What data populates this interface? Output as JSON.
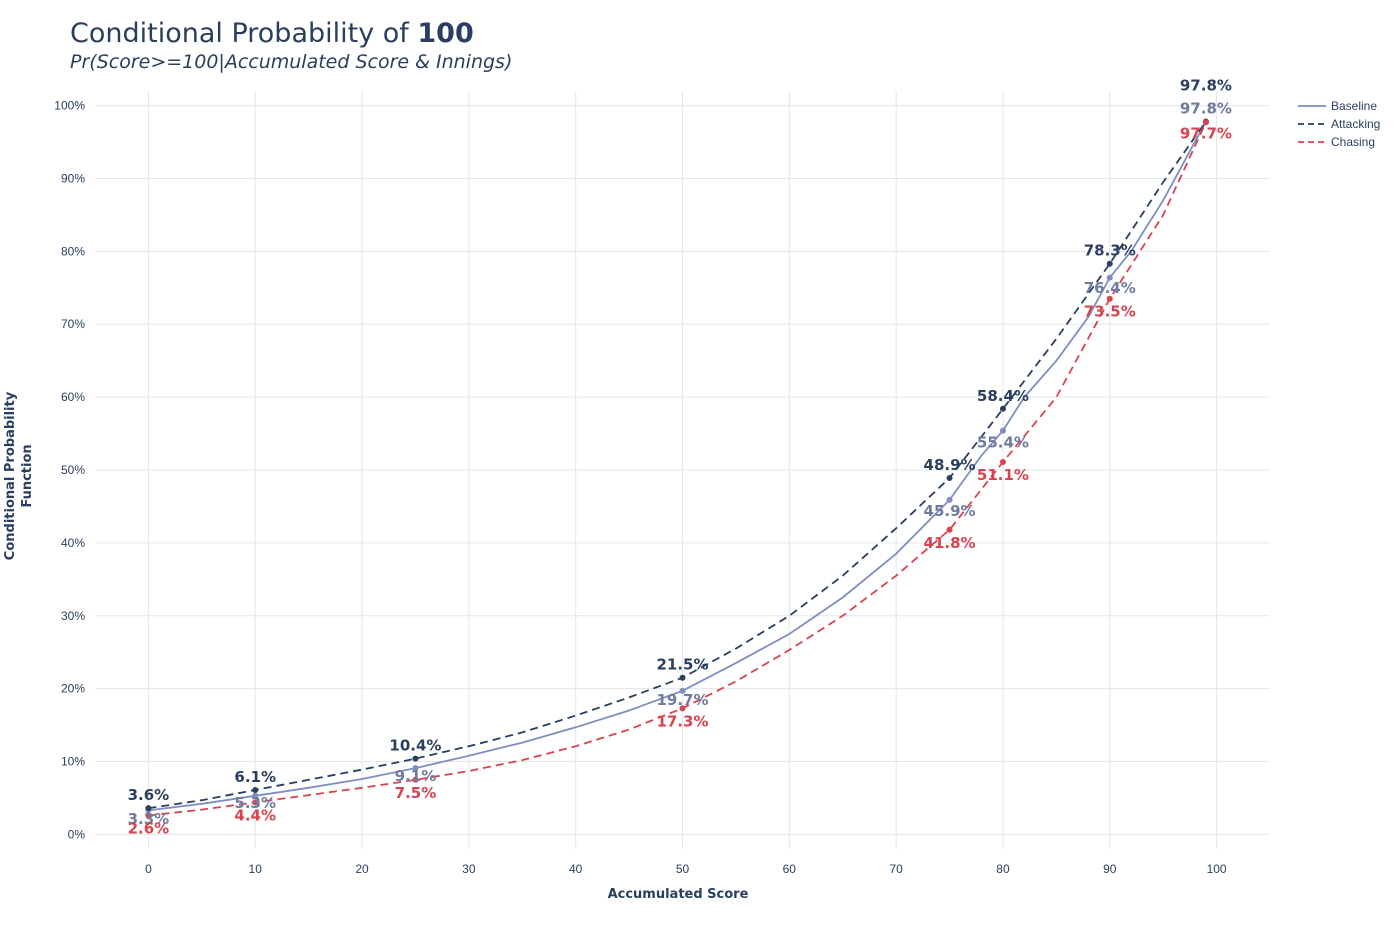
{
  "chart_data": {
    "type": "line",
    "title_prefix": "Conditional Probability of ",
    "title_bold": "100",
    "subtitle": "Pr(Score>=100|Accumulated Score & Innings)",
    "xlabel": "Accumulated Score",
    "ylabel_line1": "Conditional Probability",
    "ylabel_line2": "Function",
    "xlim": [
      -5,
      105
    ],
    "ylim": [
      -0.02,
      1.02
    ],
    "xticks": [
      0,
      10,
      20,
      30,
      40,
      50,
      60,
      70,
      80,
      90,
      100
    ],
    "xtick_labels": [
      "0",
      "10",
      "20",
      "30",
      "40",
      "50",
      "60",
      "70",
      "80",
      "90",
      "100"
    ],
    "yticks": [
      0,
      0.1,
      0.2,
      0.3,
      0.4,
      0.5,
      0.6,
      0.7,
      0.8,
      0.9,
      1.0
    ],
    "ytick_labels": [
      "0%",
      "10%",
      "20%",
      "30%",
      "40%",
      "50%",
      "60%",
      "70%",
      "80%",
      "90%",
      "100%"
    ],
    "grid": true,
    "legend_position": "top-right",
    "series": [
      {
        "name": "Baseline",
        "color": "#7f8ec2",
        "dash": "solid",
        "x": [
          0,
          5,
          10,
          15,
          20,
          25,
          30,
          35,
          40,
          45,
          50,
          55,
          60,
          65,
          70,
          75,
          78,
          80,
          82,
          85,
          88,
          90,
          92,
          95,
          99
        ],
        "y": [
          0.033,
          0.042,
          0.053,
          0.064,
          0.076,
          0.091,
          0.108,
          0.126,
          0.147,
          0.17,
          0.197,
          0.235,
          0.275,
          0.325,
          0.385,
          0.459,
          0.52,
          0.554,
          0.6,
          0.65,
          0.71,
          0.764,
          0.8,
          0.87,
          0.978
        ],
        "markers": [
          {
            "x": 0,
            "y": 0.033,
            "label": "3.3%"
          },
          {
            "x": 10,
            "y": 0.053,
            "label": "5.3%"
          },
          {
            "x": 25,
            "y": 0.091,
            "label": "9.1%"
          },
          {
            "x": 50,
            "y": 0.197,
            "label": "19.7%"
          },
          {
            "x": 75,
            "y": 0.459,
            "label": "45.9%"
          },
          {
            "x": 80,
            "y": 0.554,
            "label": "55.4%"
          },
          {
            "x": 90,
            "y": 0.764,
            "label": "76.4%"
          },
          {
            "x": 99,
            "y": 0.978,
            "label": "97.8%"
          }
        ]
      },
      {
        "name": "Attacking",
        "color": "#2a3f5f",
        "dash": "dash",
        "x": [
          0,
          5,
          10,
          15,
          20,
          25,
          30,
          35,
          40,
          45,
          50,
          55,
          60,
          65,
          70,
          75,
          80,
          85,
          90,
          95,
          99
        ],
        "y": [
          0.036,
          0.047,
          0.061,
          0.075,
          0.089,
          0.104,
          0.121,
          0.14,
          0.163,
          0.188,
          0.215,
          0.255,
          0.3,
          0.355,
          0.42,
          0.489,
          0.584,
          0.68,
          0.783,
          0.895,
          0.978
        ],
        "markers": [
          {
            "x": 0,
            "y": 0.036,
            "label": "3.6%"
          },
          {
            "x": 10,
            "y": 0.061,
            "label": "6.1%"
          },
          {
            "x": 25,
            "y": 0.104,
            "label": "10.4%"
          },
          {
            "x": 50,
            "y": 0.215,
            "label": "21.5%"
          },
          {
            "x": 75,
            "y": 0.489,
            "label": "48.9%"
          },
          {
            "x": 80,
            "y": 0.584,
            "label": "58.4%"
          },
          {
            "x": 90,
            "y": 0.783,
            "label": "78.3%"
          },
          {
            "x": 99,
            "y": 0.978,
            "label": "97.8%"
          }
        ]
      },
      {
        "name": "Chasing",
        "color": "#d9434d",
        "dash": "dash",
        "x": [
          0,
          5,
          10,
          15,
          20,
          25,
          30,
          35,
          40,
          45,
          50,
          55,
          60,
          65,
          70,
          75,
          80,
          85,
          90,
          95,
          99
        ],
        "y": [
          0.026,
          0.034,
          0.044,
          0.054,
          0.064,
          0.075,
          0.087,
          0.102,
          0.121,
          0.144,
          0.173,
          0.21,
          0.253,
          0.3,
          0.355,
          0.418,
          0.511,
          0.6,
          0.735,
          0.85,
          0.977
        ],
        "markers": [
          {
            "x": 0,
            "y": 0.026,
            "label": "2.6%"
          },
          {
            "x": 10,
            "y": 0.044,
            "label": "4.4%"
          },
          {
            "x": 25,
            "y": 0.075,
            "label": "7.5%"
          },
          {
            "x": 50,
            "y": 0.173,
            "label": "17.3%"
          },
          {
            "x": 75,
            "y": 0.418,
            "label": "41.8%"
          },
          {
            "x": 80,
            "y": 0.511,
            "label": "51.1%"
          },
          {
            "x": 90,
            "y": 0.735,
            "label": "73.5%"
          },
          {
            "x": 99,
            "y": 0.977,
            "label": "97.7%"
          }
        ]
      }
    ]
  }
}
